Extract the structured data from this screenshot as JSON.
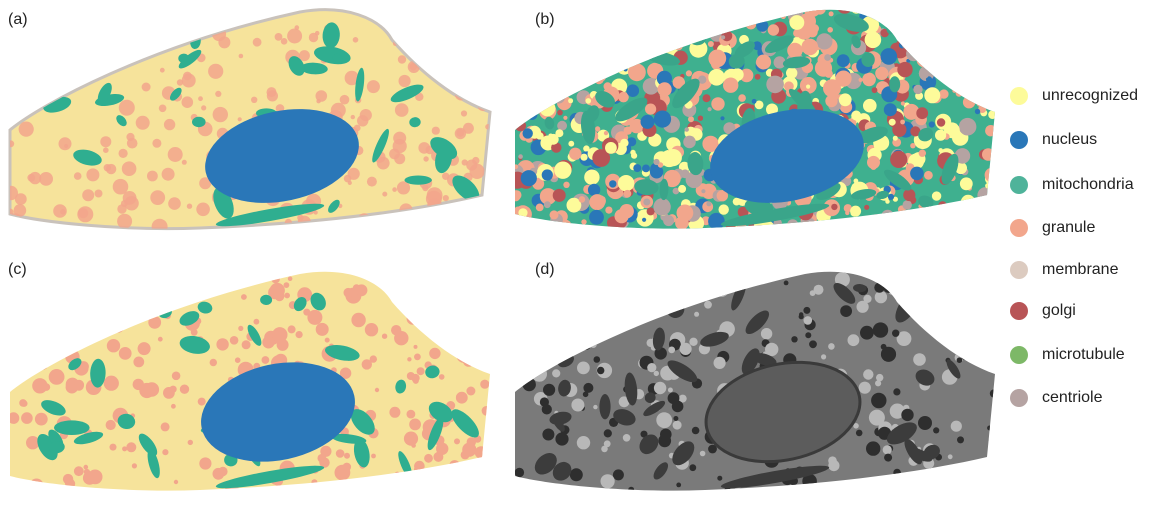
{
  "panels": [
    {
      "label": "(a)"
    },
    {
      "label": "(b)"
    },
    {
      "label": "(c)"
    },
    {
      "label": "(d)"
    }
  ],
  "legend": [
    {
      "name": "unrecognized",
      "color": "#fdfb9a"
    },
    {
      "name": "nucleus",
      "color": "#2a77b8"
    },
    {
      "name": "mitochondria",
      "color": "#4fb39a"
    },
    {
      "name": "granule",
      "color": "#f2a68c"
    },
    {
      "name": "membrane",
      "color": "#dccbc0"
    },
    {
      "name": "golgi",
      "color": "#b85456"
    },
    {
      "name": "microtubule",
      "color": "#7db867"
    },
    {
      "name": "centriole",
      "color": "#b5a3a2"
    }
  ]
}
